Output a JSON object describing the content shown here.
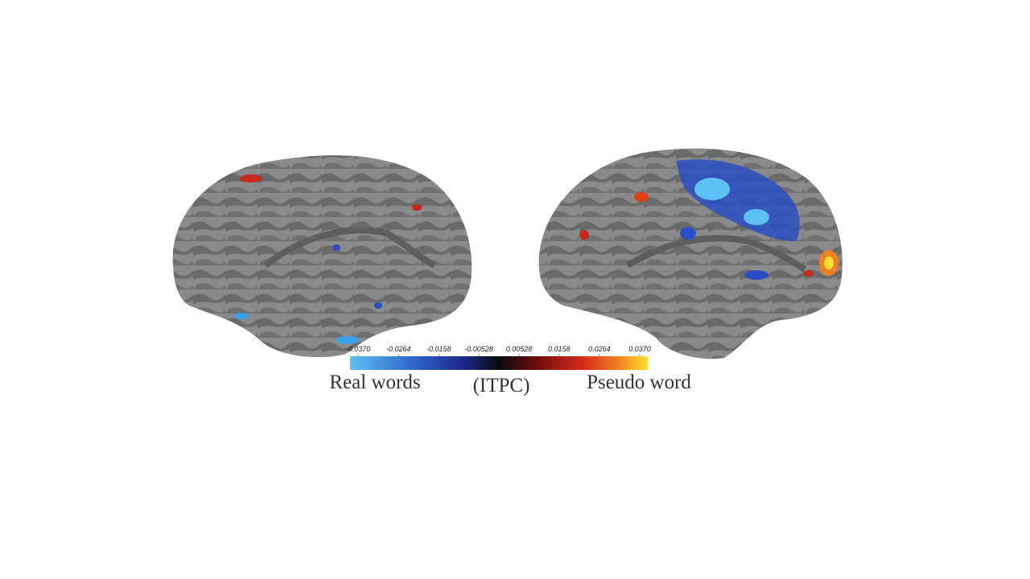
{
  "colorbar": {
    "lim": [
      -0.037,
      0.037
    ],
    "ticks": [
      {
        "value": -0.037,
        "label": "-0.0370"
      },
      -0.0264,
      -0.0158,
      -0.00528,
      0.00528,
      0.0158,
      0.0264,
      {
        "value": 0.037,
        "label": "0.0370"
      }
    ],
    "left_label": "Real words",
    "unit_label": "(ITPC)",
    "right_label": "Pseudo word"
  }
}
